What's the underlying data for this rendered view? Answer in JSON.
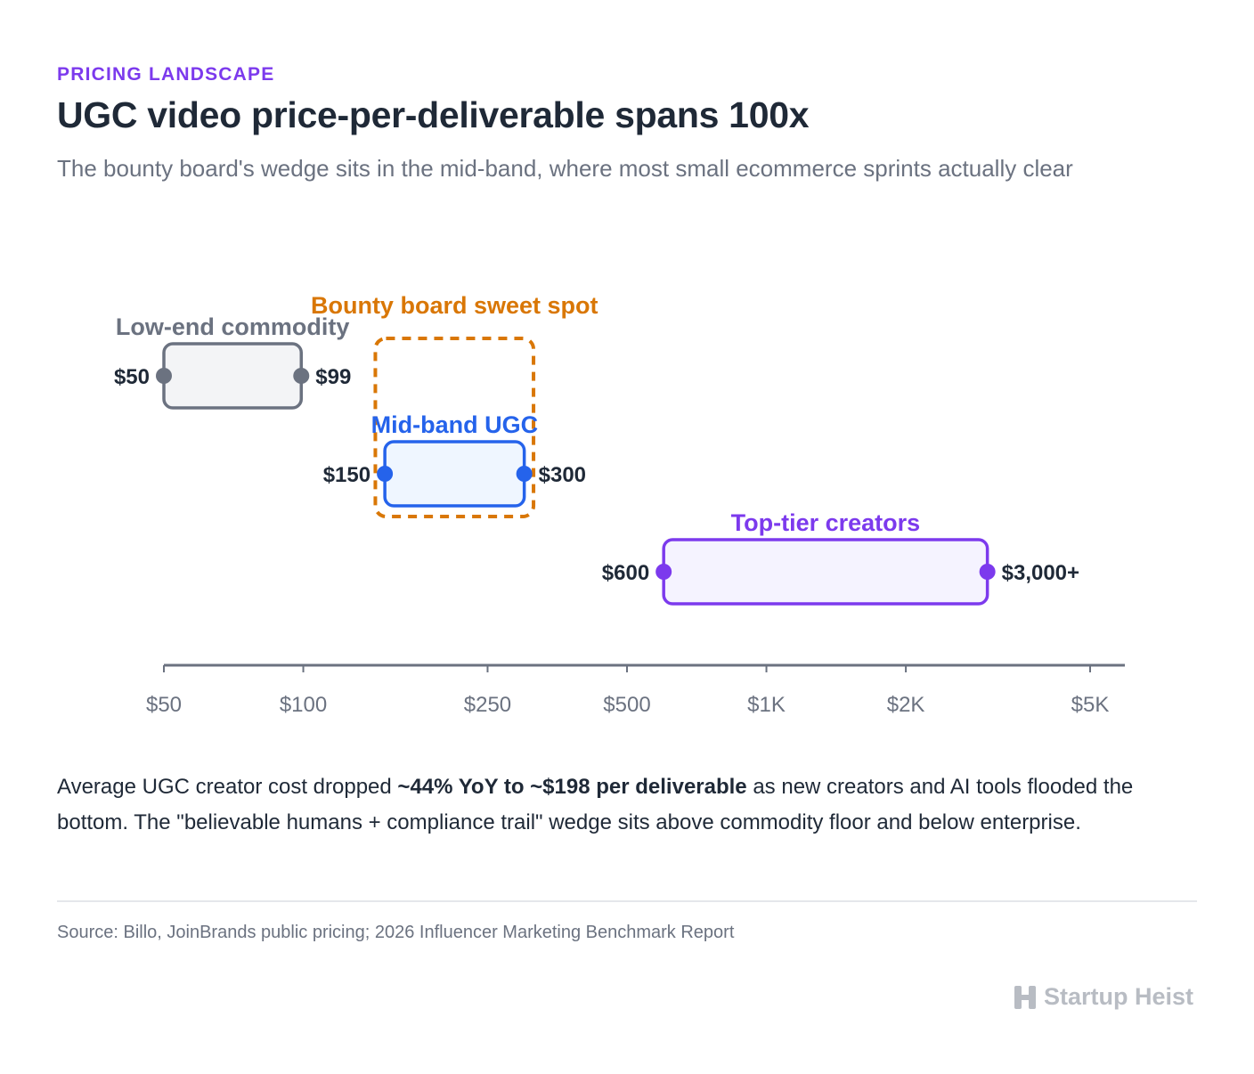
{
  "header": {
    "eyebrow": "PRICING LANDSCAPE",
    "title": "UGC video price-per-deliverable spans 100x",
    "subtitle": "The bounty board's wedge sits in the mid-band, where most small ecommerce sprints actually clear"
  },
  "chart_data": {
    "type": "range",
    "x_scale": "log",
    "xlim": [
      50,
      5000
    ],
    "ticks": [
      {
        "value": 50,
        "label": "$50"
      },
      {
        "value": 100,
        "label": "$100"
      },
      {
        "value": 250,
        "label": "$250"
      },
      {
        "value": 500,
        "label": "$500"
      },
      {
        "value": 1000,
        "label": "$1K"
      },
      {
        "value": 2000,
        "label": "$2K"
      },
      {
        "value": 5000,
        "label": "$5K"
      }
    ],
    "series": [
      {
        "name": "Low-end commodity",
        "min": 50,
        "max": 99,
        "min_label": "$50",
        "max_label": "$99",
        "color": "#6b7280",
        "fill": "#f3f4f6"
      },
      {
        "name": "Mid-band UGC",
        "min": 150,
        "max": 300,
        "min_label": "$150",
        "max_label": "$300",
        "color": "#2563eb",
        "fill": "#eff6ff"
      },
      {
        "name": "Top-tier creators",
        "min": 600,
        "max": 3000,
        "min_label": "$600",
        "max_label": "$3,000+",
        "color": "#7c3aed",
        "fill": "#f5f3ff"
      }
    ],
    "highlight": {
      "label": "Bounty board sweet spot",
      "min": 145,
      "max": 310,
      "color": "#d97706"
    }
  },
  "narrative": {
    "before": "Average UGC creator cost dropped ",
    "bold": "~44% YoY to ~$198 per deliverable",
    "after": " as new creators and AI tools flooded the bottom. The \"believable humans + compliance trail\" wedge sits above commodity floor and below enterprise."
  },
  "footer": {
    "source": "Source: Billo, JoinBrands public pricing; 2026 Influencer Marketing Benchmark Report",
    "brand": "Startup Heist",
    "brand_icon": "h-logo-icon"
  }
}
